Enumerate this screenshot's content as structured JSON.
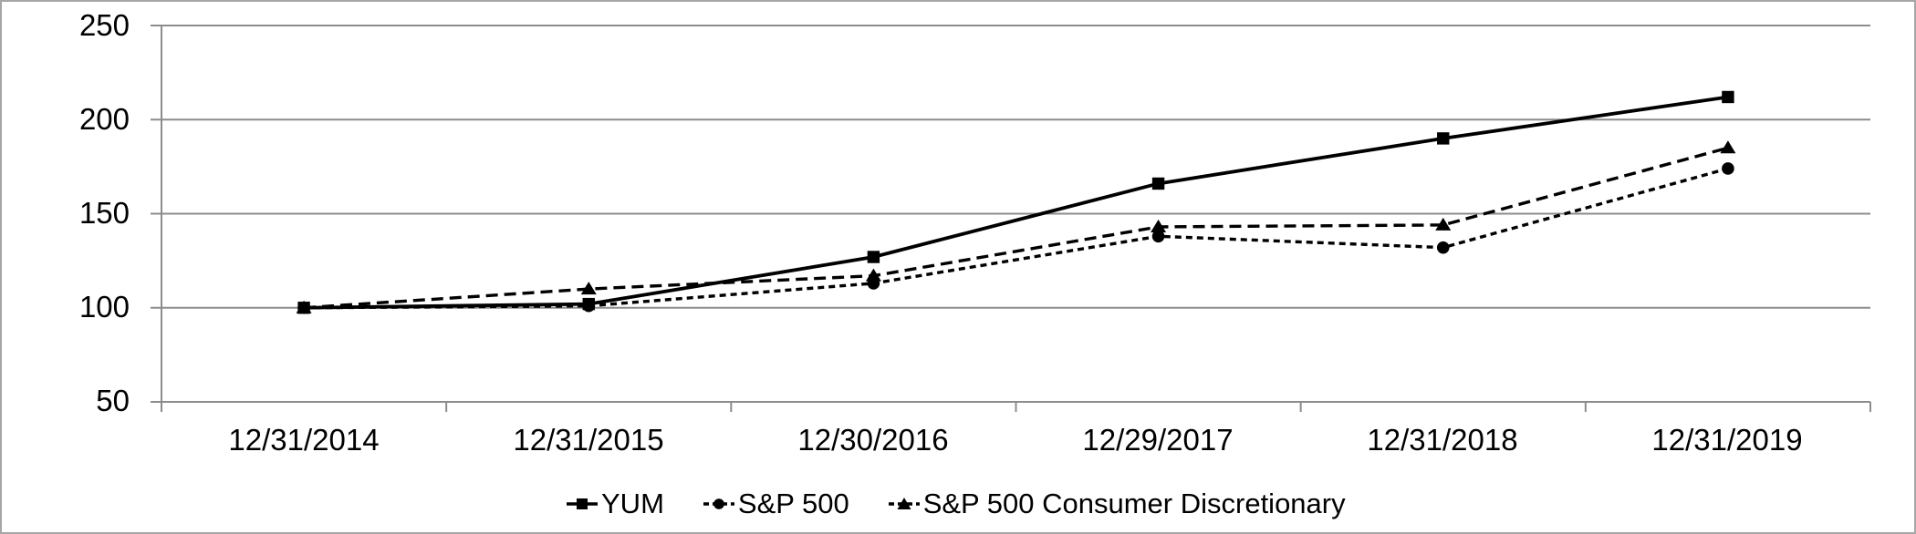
{
  "chart_data": {
    "type": "line",
    "title": "",
    "categories": [
      "12/31/2014",
      "12/31/2015",
      "12/30/2016",
      "12/29/2017",
      "12/31/2018",
      "12/31/2019"
    ],
    "series": [
      {
        "name": "S&P 500",
        "values": [
          100,
          101,
          113,
          138,
          132,
          174
        ],
        "color": "#000000",
        "marker": "circle",
        "dash": "dot"
      },
      {
        "name": "S&P 500 Consumer Discretionary",
        "values": [
          100,
          110,
          117,
          143,
          144,
          185
        ],
        "color": "#000000",
        "marker": "triangle",
        "dash": "dash"
      },
      {
        "name": "YUM",
        "values": [
          100,
          102,
          127,
          166,
          190,
          212
        ],
        "color": "#000000",
        "marker": "square",
        "dash": "solid"
      }
    ],
    "legend_order": [
      "YUM",
      "S&P 500",
      "S&P 500 Consumer Discretionary"
    ],
    "legend_position": "bottom",
    "grid": "horizontal",
    "xlabel": "",
    "ylabel": "",
    "ylim": [
      50,
      250
    ],
    "yticks": [
      50,
      100,
      150,
      200,
      250
    ],
    "ytick_labels_top_to_bottom": [
      "250",
      "200",
      "150",
      "100",
      "50"
    ],
    "axis_color": "#8c8c8c",
    "line_color": "#000000"
  }
}
